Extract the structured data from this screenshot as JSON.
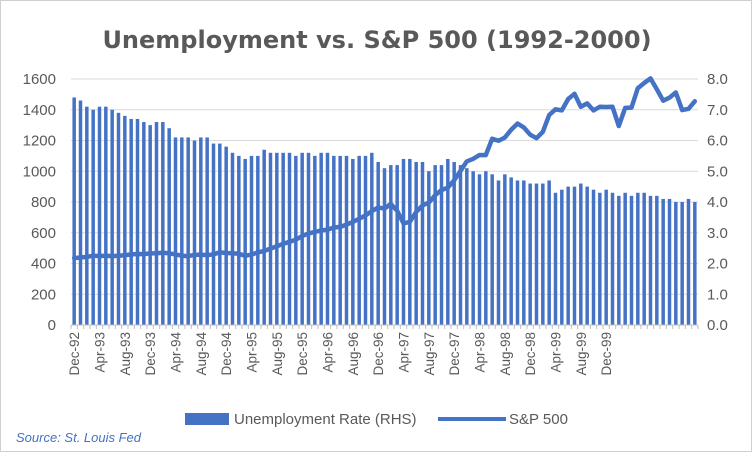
{
  "chart_data": {
    "type": "bar+line",
    "title": "Unemployment vs. S&P 500 (1992-2000)",
    "x_tick_labels": [
      "Dec-92",
      "Apr-93",
      "Aug-93",
      "Dec-93",
      "Apr-94",
      "Aug-94",
      "Dec-94",
      "Apr-95",
      "Aug-95",
      "Dec-95",
      "Apr-96",
      "Aug-96",
      "Dec-96",
      "Apr-97",
      "Aug-97",
      "Dec-97",
      "Apr-98",
      "Aug-98",
      "Dec-98",
      "Apr-99",
      "Aug-99",
      "Dec-99"
    ],
    "y_left": {
      "ylim": [
        0,
        1600
      ],
      "ticks": [
        "0",
        "200",
        "400",
        "600",
        "800",
        "1000",
        "1200",
        "1400",
        "1600"
      ]
    },
    "y_right": {
      "ylim": [
        0,
        8
      ],
      "ticks": [
        "0.0",
        "1.0",
        "2.0",
        "3.0",
        "4.0",
        "5.0",
        "6.0",
        "7.0",
        "8.0"
      ]
    },
    "grid": true,
    "legend_position": "bottom",
    "series": [
      {
        "name": "Unemployment Rate (RHS)",
        "type": "bar",
        "axis": "right",
        "color": "#4472c4",
        "values": [
          7.4,
          7.3,
          7.1,
          7.0,
          7.1,
          7.1,
          7.0,
          6.9,
          6.8,
          6.7,
          6.7,
          6.6,
          6.5,
          6.6,
          6.6,
          6.4,
          6.1,
          6.1,
          6.1,
          6.0,
          6.1,
          6.1,
          5.9,
          5.9,
          5.8,
          5.6,
          5.5,
          5.4,
          5.5,
          5.5,
          5.7,
          5.6,
          5.6,
          5.6,
          5.6,
          5.5,
          5.6,
          5.6,
          5.5,
          5.6,
          5.6,
          5.5,
          5.5,
          5.5,
          5.4,
          5.5,
          5.5,
          5.6,
          5.3,
          5.1,
          5.2,
          5.2,
          5.4,
          5.4,
          5.3,
          5.3,
          5.0,
          5.2,
          5.2,
          5.4,
          5.3,
          5.2,
          5.1,
          5.0,
          4.9,
          5.0,
          4.9,
          4.7,
          4.9,
          4.8,
          4.7,
          4.7,
          4.6,
          4.6,
          4.6,
          4.7,
          4.3,
          4.4,
          4.5,
          4.5,
          4.6,
          4.5,
          4.4,
          4.3,
          4.4,
          4.3,
          4.2,
          4.3,
          4.2,
          4.3,
          4.3,
          4.2,
          4.2,
          4.1,
          4.1,
          4.0,
          4.0,
          4.1,
          4.0
        ]
      },
      {
        "name": "S&P 500",
        "type": "line",
        "axis": "left",
        "color": "#4472c4",
        "values": [
          435,
          439,
          443,
          451,
          449,
          450,
          448,
          450,
          454,
          459,
          462,
          461,
          466,
          467,
          470,
          466,
          459,
          451,
          448,
          456,
          458,
          454,
          460,
          473,
          468,
          467,
          463,
          450,
          458,
          472,
          482,
          497,
          512,
          528,
          541,
          555,
          578,
          596,
          605,
          615,
          619,
          634,
          638,
          653,
          670,
          691,
          713,
          740,
          765,
          757,
          787,
          742,
          661,
          671,
          735,
          778,
          796,
          844,
          878,
          893,
          942,
          1002,
          1064,
          1081,
          1106,
          1105,
          1212,
          1198,
          1219,
          1270,
          1310,
          1285,
          1238,
          1215,
          1256,
          1366,
          1403,
          1396,
          1470,
          1504,
          1419,
          1441,
          1396,
          1419,
          1418,
          1419,
          1294,
          1412,
          1414,
          1540,
          1574,
          1604,
          1533,
          1459,
          1479,
          1512,
          1398,
          1406,
          1455
        ]
      }
    ],
    "source": "Source: St. Louis Fed"
  }
}
